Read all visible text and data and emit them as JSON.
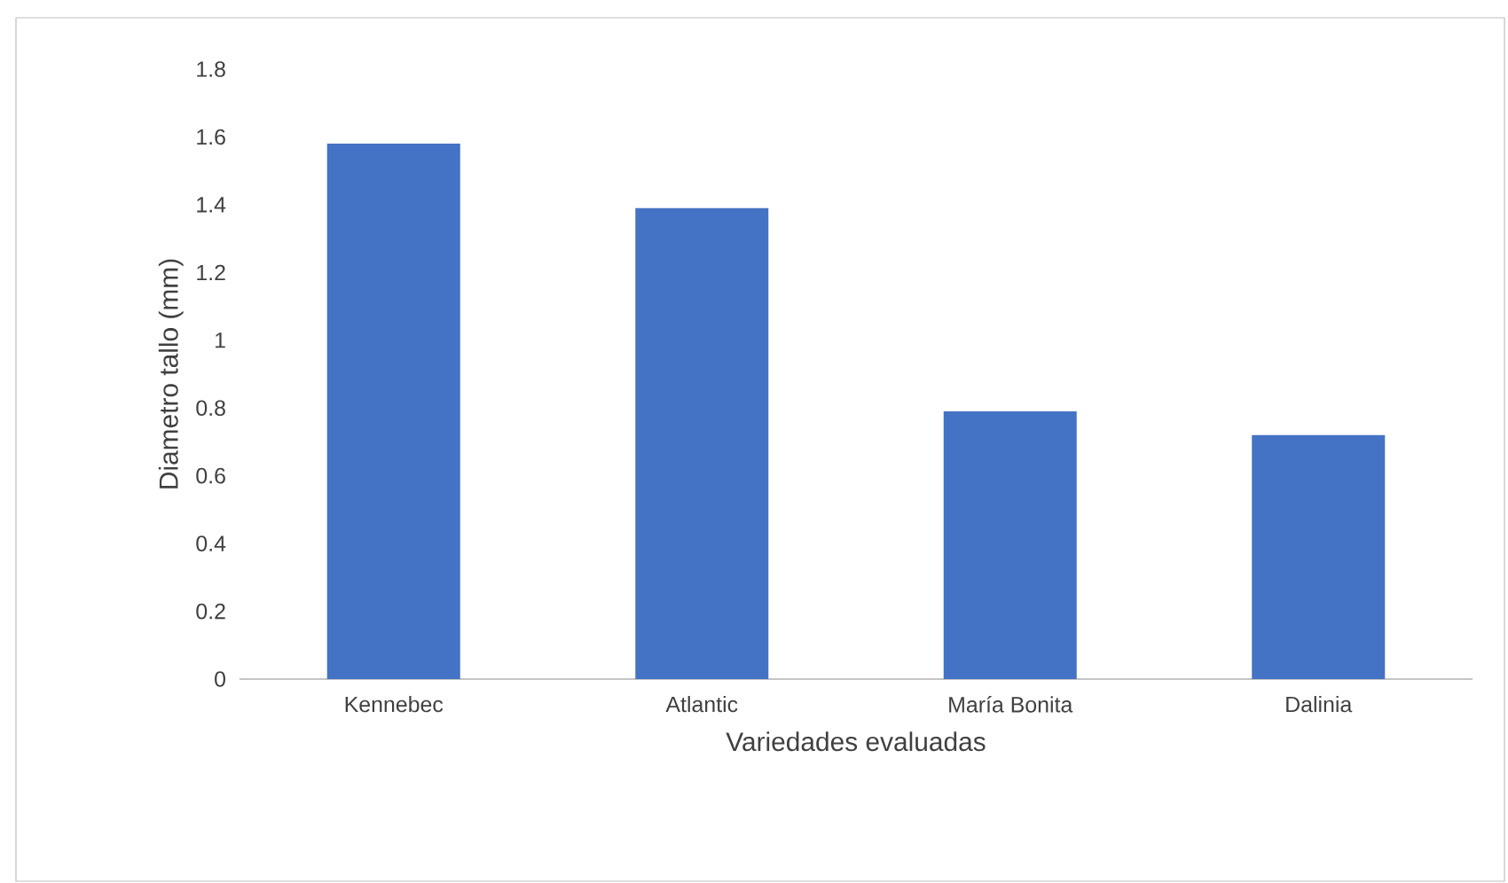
{
  "chart_data": {
    "type": "bar",
    "xlabel": "Variedades evaluadas",
    "ylabel": "Diametro tallo (mm)",
    "categories": [
      "Kennebec",
      "Atlantic",
      "María Bonita",
      "Dalinia"
    ],
    "values": [
      1.58,
      1.39,
      0.79,
      0.72
    ],
    "color": "#4472c4",
    "ylim": [
      0,
      1.8
    ],
    "yticks": [
      0,
      0.2,
      0.4,
      0.6,
      0.8,
      1,
      1.2,
      1.4,
      1.6,
      1.8
    ]
  }
}
